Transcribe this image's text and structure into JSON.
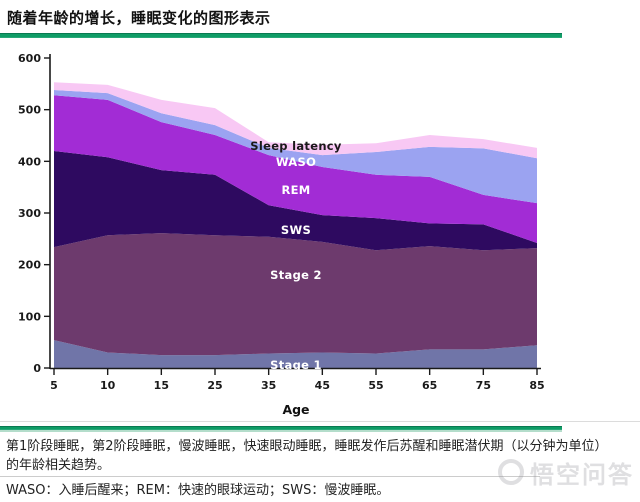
{
  "header": {
    "title": "随着年龄的增长，睡眠变化的图形表示"
  },
  "chart_data": {
    "type": "area",
    "stacked": true,
    "xlabel": "Age",
    "x": [
      5,
      10,
      15,
      25,
      35,
      45,
      55,
      65,
      75,
      85
    ],
    "ylim": [
      0,
      600
    ],
    "y_ticks": [
      0,
      100,
      200,
      300,
      400,
      500,
      600
    ],
    "grid": false,
    "legend_position": "inline-labels",
    "series": [
      {
        "name": "Stage 1",
        "color": "#7075a8",
        "label_color": "#ffffff",
        "values": [
          54,
          30,
          25,
          25,
          28,
          30,
          28,
          36,
          36,
          44
        ]
      },
      {
        "name": "Stage 2",
        "color": "#6d3a6d",
        "label_color": "#ffffff",
        "values": [
          180,
          227,
          236,
          232,
          226,
          214,
          200,
          200,
          192,
          188
        ]
      },
      {
        "name": "SWS",
        "color": "#2e0a60",
        "label_color": "#ffffff",
        "values": [
          186,
          151,
          122,
          117,
          61,
          52,
          62,
          44,
          50,
          10
        ]
      },
      {
        "name": "REM",
        "color": "#a22cd5",
        "label_color": "#ffffff",
        "values": [
          108,
          111,
          93,
          77,
          97,
          93,
          84,
          90,
          57,
          77
        ]
      },
      {
        "name": "WASO",
        "color": "#9ba3f1",
        "label_color": "#ffffff",
        "values": [
          10,
          13,
          17,
          19,
          14,
          23,
          44,
          58,
          90,
          87
        ]
      },
      {
        "name": "Sleep latency",
        "color": "#f8c8f4",
        "label_color": "#1a1a1a",
        "values": [
          15,
          16,
          26,
          33,
          11,
          20,
          17,
          23,
          18,
          20
        ]
      }
    ]
  },
  "footer": {
    "caption": "第1阶段睡眠，第2阶段睡眠，慢波睡眠，快速眼动睡眠，睡眠发作后苏醒和睡眠潜伏期（以分钟为单位）的年龄相关趋势。",
    "abbreviations": "WASO：入睡后醒来；REM：快速的眼球运动；SWS：慢波睡眠。",
    "watermark": "悟空问答"
  },
  "colors": {
    "accent_green": "#0f9c66",
    "axis": "#1a1a1a"
  }
}
